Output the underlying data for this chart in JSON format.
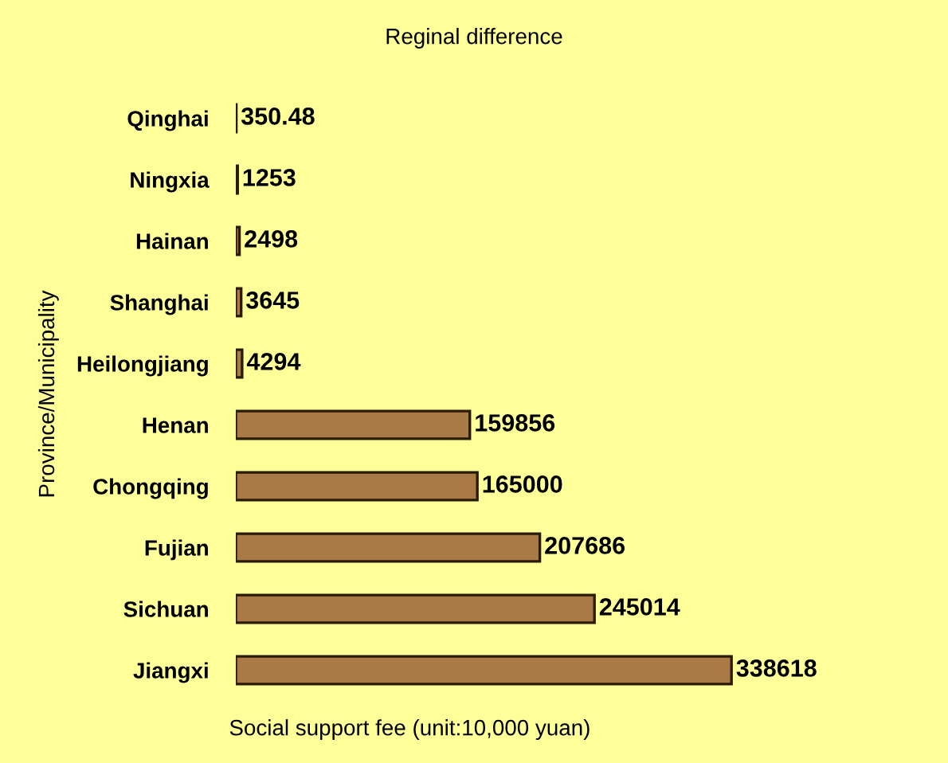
{
  "chart_data": {
    "type": "bar",
    "orientation": "horizontal",
    "title": "Reginal difference",
    "xlabel": "Social support fee (unit:10,000 yuan)",
    "ylabel": "Province/Municipality",
    "categories": [
      "Qinghai",
      "Ningxia",
      "Hainan",
      "Shanghai",
      "Heilongjiang",
      "Henan",
      "Chongqing",
      "Fujian",
      "Sichuan",
      "Jiangxi"
    ],
    "values": [
      350.48,
      1253,
      2498,
      3645,
      4294,
      159856,
      165000,
      207686,
      245014,
      338618
    ],
    "color": "#a97a45",
    "data_labels": true,
    "grid": false,
    "legend": false
  }
}
